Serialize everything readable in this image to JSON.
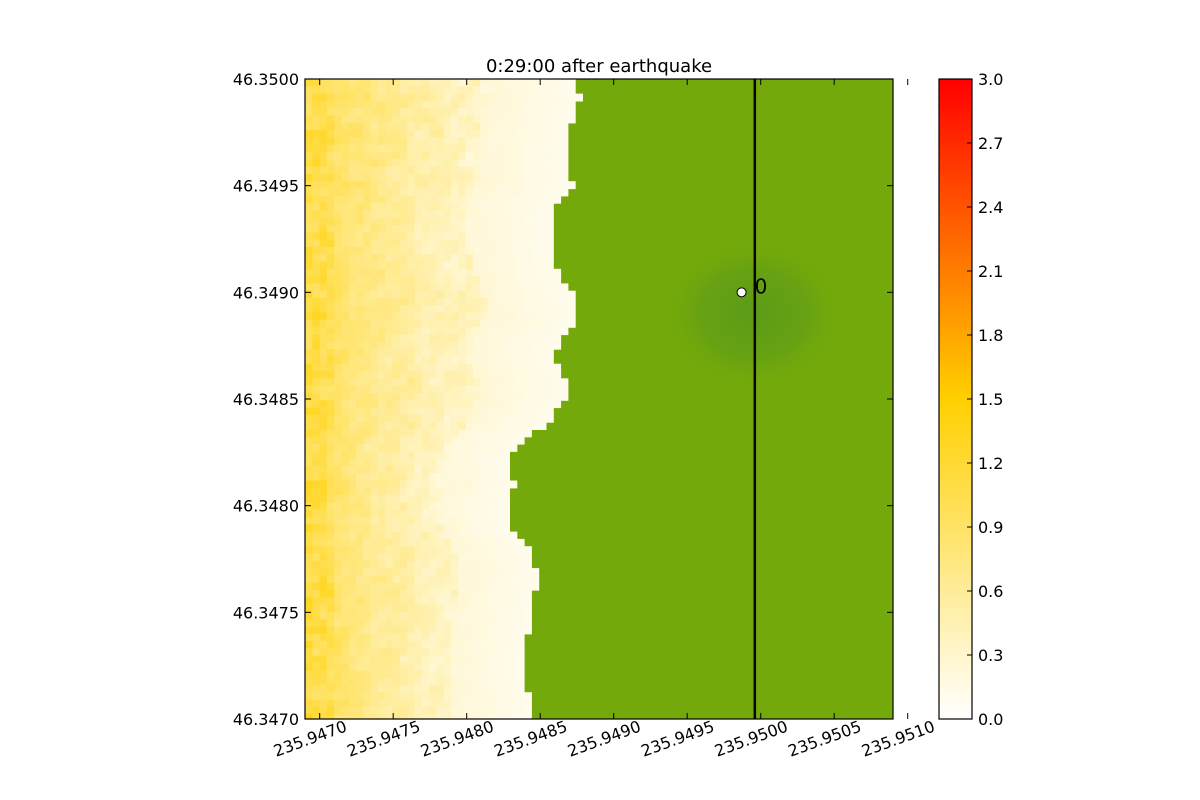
{
  "chart_data": {
    "type": "heatmap",
    "title": "0:29:00 after earthquake",
    "xlabel": "",
    "ylabel": "",
    "xlim": [
      235.9469,
      235.9509
    ],
    "ylim": [
      46.347,
      46.35
    ],
    "x_ticks": [
      "235.9470",
      "235.9475",
      "235.9480",
      "235.9485",
      "235.9490",
      "235.9495",
      "235.9500",
      "235.9505",
      "235.9510"
    ],
    "y_ticks": [
      "46.3470",
      "46.3475",
      "46.3480",
      "46.3485",
      "46.3490",
      "46.3495",
      "46.3500"
    ],
    "colorbar": {
      "min": 0.0,
      "max": 3.0,
      "ticks": [
        "0.0",
        "0.3",
        "0.6",
        "0.9",
        "1.2",
        "1.5",
        "1.8",
        "2.1",
        "2.4",
        "2.7",
        "3.0"
      ],
      "colors": [
        "#ffffff",
        "#ffd000",
        "#ff0000"
      ]
    },
    "land_region": {
      "description_free": true,
      "shoreline_x_by_y": [
        [
          46.35,
          235.94872
        ],
        [
          46.3499,
          235.94877
        ],
        [
          46.3498,
          235.94872
        ],
        [
          46.3497,
          235.94867
        ],
        [
          46.3496,
          235.94867
        ],
        [
          46.3495,
          235.94872
        ],
        [
          46.3494,
          235.94857
        ],
        [
          46.3493,
          235.94857
        ],
        [
          46.3492,
          235.94857
        ],
        [
          46.3491,
          235.94862
        ],
        [
          46.349,
          235.94872
        ],
        [
          46.3489,
          235.94877
        ],
        [
          46.3488,
          235.94867
        ],
        [
          46.3487,
          235.94857
        ],
        [
          46.3486,
          235.94867
        ],
        [
          46.3485,
          235.94867
        ],
        [
          46.3484,
          235.94857
        ],
        [
          46.3483,
          235.94837
        ],
        [
          46.3482,
          235.94827
        ],
        [
          46.3481,
          235.94832
        ],
        [
          46.348,
          235.94827
        ],
        [
          46.3479,
          235.94827
        ],
        [
          46.3478,
          235.94842
        ],
        [
          46.3477,
          235.94847
        ],
        [
          46.3476,
          235.94847
        ],
        [
          46.3475,
          235.94842
        ],
        [
          46.3474,
          235.94842
        ],
        [
          46.3473,
          235.94837
        ],
        [
          46.3472,
          235.94837
        ],
        [
          46.3471,
          235.94842
        ],
        [
          46.347,
          235.94842
        ]
      ],
      "water_color": "#73a90a",
      "depression_center": [
        235.94995,
        46.3489
      ],
      "depression_color": "#5a9a1a"
    },
    "transect_line_x": 235.94996,
    "gauge": {
      "x": 235.94987,
      "y": 46.349,
      "label": "0"
    }
  }
}
